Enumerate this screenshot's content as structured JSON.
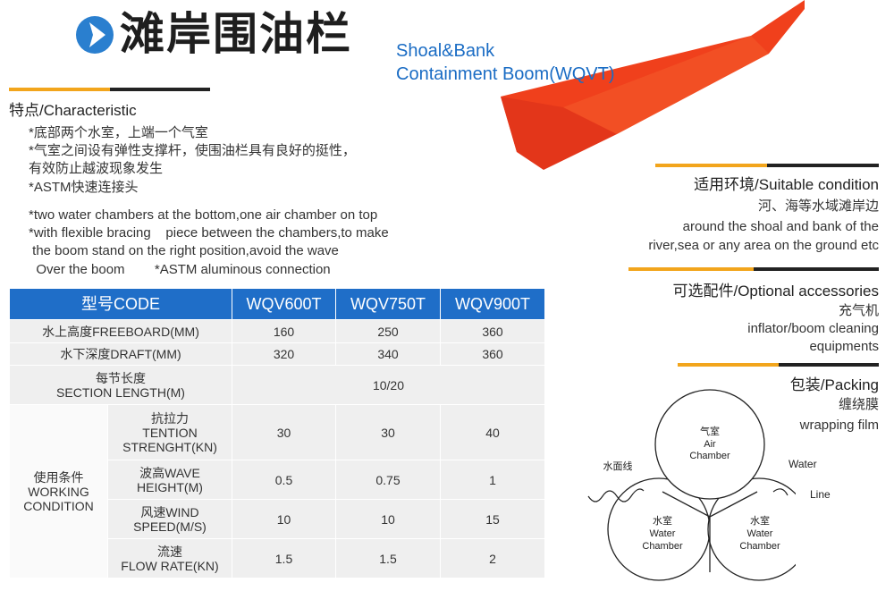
{
  "header": {
    "icon": "blue-circle-arrow-right-icon",
    "title_cn": "滩岸围油栏",
    "title_en_line1": "Shoal&Bank",
    "title_en_line2": "Containment Boom(WQVT)"
  },
  "colors": {
    "accent_blue": "#1f6ec8",
    "divider_orange": "#f2a51c",
    "boom_red": "#f0401c"
  },
  "characteristic": {
    "heading": "特点/Characteristic",
    "cn_lines": [
      "*底部两个水室，上端一个气室",
      "*气室之间设有弹性支撑杆，使围油栏具有良好的挺性，",
      "有效防止越波现象发生",
      "*ASTM快速连接头"
    ],
    "en_lines": [
      "*two water chambers at the bottom,one air chamber on top",
      "*with flexible bracing    piece between the chambers,to make",
      " the boom stand on the right position,avoid the wave",
      "  Over the boom        *ASTM aluminous connection"
    ]
  },
  "table": {
    "headers": [
      "型号CODE",
      "WQV600T",
      "WQV750T",
      "WQV900T"
    ],
    "freeboard": {
      "label": "水上高度FREEBOARD(MM)",
      "values": [
        "160",
        "250",
        "360"
      ]
    },
    "draft": {
      "label": "水下深度DRAFT(MM)",
      "values": [
        "320",
        "340",
        "360"
      ]
    },
    "section_length": {
      "label_cn": "每节长度",
      "label_en": "SECTION LENGTH(M)",
      "value": "10/20"
    },
    "working_condition": {
      "label_cn": "使用条件",
      "label_en1": "WORKING",
      "label_en2": "CONDITION"
    },
    "tension": {
      "label_cn": "抗拉力",
      "label_en1": "TENTION",
      "label_en2": "STRENGHT(KN)",
      "values": [
        "30",
        "30",
        "40"
      ]
    },
    "wave": {
      "label1": "波高WAVE",
      "label2": "HEIGHT(M)",
      "values": [
        "0.5",
        "0.75",
        "1"
      ]
    },
    "wind": {
      "label1": "风速WIND",
      "label2": "SPEED(M/S)",
      "values": [
        "10",
        "10",
        "15"
      ]
    },
    "flow": {
      "label1": "流速",
      "label2": "FLOW RATE(KN)",
      "values": [
        "1.5",
        "1.5",
        "2"
      ]
    }
  },
  "suitable": {
    "heading": "适用环境/Suitable condition",
    "lines": [
      "河、海等水域滩岸边",
      "around the shoal and bank of the",
      "river,sea or any area on the ground etc"
    ]
  },
  "optional": {
    "heading": "可选配件/Optional accessories",
    "lines": [
      "充气机",
      "inflator/boom cleaning",
      "equipments"
    ]
  },
  "packing": {
    "heading": "包装/Packing",
    "lines": [
      "缠绕膜",
      "wrapping film"
    ]
  },
  "diagram": {
    "air_cn": "气室",
    "air_en1": "Air",
    "air_en2": "Chamber",
    "water_cn": "水室",
    "water_en1": "Water",
    "water_en2": "Chamber",
    "waterline_cn": "水面线",
    "waterline_en1": "Water",
    "waterline_en2": "Line"
  }
}
